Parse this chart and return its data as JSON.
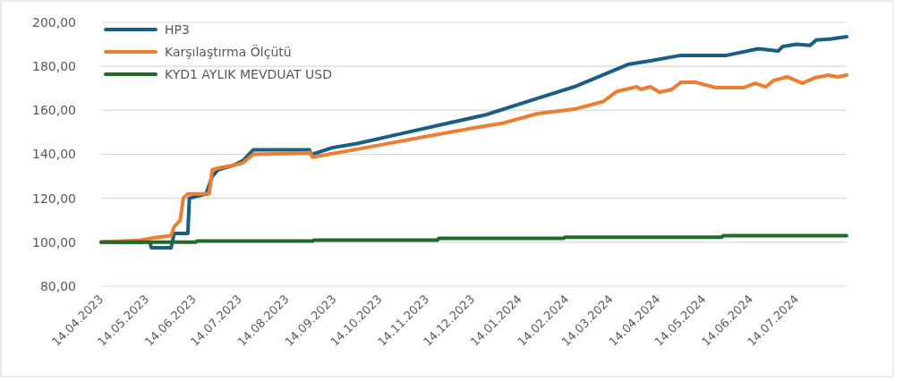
{
  "chart_data": {
    "type": "line",
    "xlim": [
      "2023-04-14",
      "2024-08-16"
    ],
    "ylim": [
      80,
      200
    ],
    "yticks": [
      {
        "value": 80,
        "label": "80,00"
      },
      {
        "value": 100,
        "label": "100,00"
      },
      {
        "value": 120,
        "label": "120,00"
      },
      {
        "value": 140,
        "label": "140,00"
      },
      {
        "value": 160,
        "label": "160,00"
      },
      {
        "value": 180,
        "label": "180,00"
      },
      {
        "value": 200,
        "label": "200,00"
      }
    ],
    "xticks": [
      {
        "value": "2023-04-14",
        "label": "14.04.2023"
      },
      {
        "value": "2023-05-14",
        "label": "14.05.2023"
      },
      {
        "value": "2023-06-14",
        "label": "14.06.2023"
      },
      {
        "value": "2023-07-14",
        "label": "14.07.2023"
      },
      {
        "value": "2023-08-14",
        "label": "14.08.2023"
      },
      {
        "value": "2023-09-14",
        "label": "14.09.2023"
      },
      {
        "value": "2023-10-14",
        "label": "14.10.2023"
      },
      {
        "value": "2023-11-14",
        "label": "14.11.2023"
      },
      {
        "value": "2023-12-14",
        "label": "14.12.2023"
      },
      {
        "value": "2024-01-14",
        "label": "14.01.2024"
      },
      {
        "value": "2024-02-14",
        "label": "14.02.2024"
      },
      {
        "value": "2024-03-14",
        "label": "14.03.2024"
      },
      {
        "value": "2024-04-14",
        "label": "14.04.2024"
      },
      {
        "value": "2024-05-14",
        "label": "14.05.2024"
      },
      {
        "value": "2024-06-14",
        "label": "14.06.2024"
      },
      {
        "value": "2024-07-14",
        "label": "14.07.2024"
      }
    ],
    "grid": "y",
    "legend": "top left",
    "marker": "none",
    "line_style": "solid",
    "series": [
      {
        "name": "HP3",
        "color": "#1a5e85",
        "x": [
          "2023-04-14",
          "2023-05-16",
          "2023-05-17",
          "2023-05-30",
          "2023-06-01",
          "2023-06-10",
          "2023-06-11",
          "2023-06-22",
          "2023-06-26",
          "2023-06-30",
          "2023-07-10",
          "2023-07-16",
          "2023-07-23",
          "2023-08-29",
          "2023-08-30",
          "2023-09-13",
          "2023-09-30",
          "2023-10-29",
          "2023-12-23",
          "2024-01-26",
          "2024-02-19",
          "2024-03-26",
          "2024-04-09",
          "2024-04-29",
          "2024-05-29",
          "2024-06-19",
          "2024-07-02",
          "2024-07-05",
          "2024-07-14",
          "2024-07-23",
          "2024-07-27",
          "2024-08-06",
          "2024-08-16"
        ],
        "values": [
          100,
          100,
          97.5,
          97.5,
          104,
          104,
          120,
          122,
          130,
          133,
          135,
          137,
          142,
          142,
          139.8,
          143,
          145,
          149.5,
          158,
          165.5,
          170.7,
          181,
          182.5,
          185,
          185,
          188,
          187,
          189,
          190,
          189.5,
          192,
          192.5,
          193.5
        ]
      },
      {
        "name": "Karşılaştırma Ölçütü",
        "color": "#ed7d31",
        "x": [
          "2023-04-14",
          "2023-05-10",
          "2023-05-18",
          "2023-05-30",
          "2023-06-01",
          "2023-06-05",
          "2023-06-07",
          "2023-06-10",
          "2023-06-24",
          "2023-06-26",
          "2023-07-02",
          "2023-07-10",
          "2023-07-16",
          "2023-07-23",
          "2023-08-28",
          "2023-08-29",
          "2023-08-31",
          "2023-09-30",
          "2023-11-10",
          "2023-12-15",
          "2024-01-02",
          "2024-01-26",
          "2024-02-19",
          "2024-03-09",
          "2024-03-18",
          "2024-03-31",
          "2024-04-03",
          "2024-04-09",
          "2024-04-15",
          "2024-04-23",
          "2024-04-29",
          "2024-05-09",
          "2024-05-22",
          "2024-06-09",
          "2024-06-17",
          "2024-06-24",
          "2024-06-29",
          "2024-07-08",
          "2024-07-18",
          "2024-07-26",
          "2024-08-04",
          "2024-08-10",
          "2024-08-16"
        ],
        "values": [
          100,
          101,
          102,
          103,
          107,
          110,
          120,
          122,
          122,
          133,
          134,
          135,
          136,
          140,
          140.5,
          141,
          138.7,
          142.4,
          147.6,
          152,
          154,
          158.5,
          160.5,
          164,
          168.6,
          170.7,
          169.5,
          170.7,
          168.3,
          169.5,
          172.7,
          172.7,
          170.3,
          170.3,
          172.3,
          170.7,
          173.6,
          175.2,
          172.3,
          174.8,
          176,
          175.2,
          176
        ]
      },
      {
        "name": "KYD1 AYLIK MEVDUAT USD",
        "color": "#1e6b2a",
        "x": [
          "2023-04-14",
          "2023-06-15",
          "2023-06-16",
          "2023-08-31",
          "2023-09-01",
          "2023-11-21",
          "2023-11-22",
          "2024-02-12",
          "2024-02-13",
          "2024-05-26",
          "2024-05-27",
          "2024-08-16"
        ],
        "values": [
          100,
          100,
          100.5,
          100.5,
          101,
          101,
          101.8,
          101.8,
          102.3,
          102.3,
          103,
          103
        ]
      }
    ]
  }
}
